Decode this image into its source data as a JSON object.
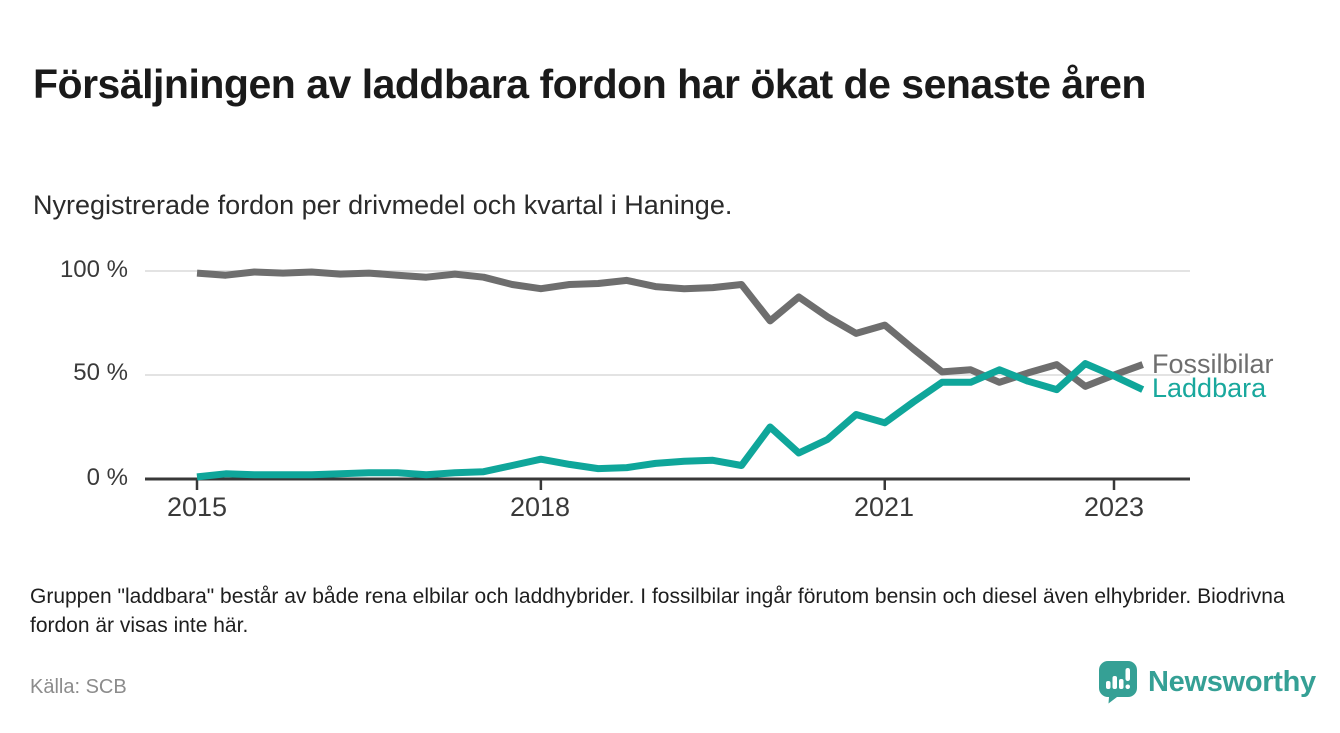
{
  "header": {
    "title": "Försäljningen av laddbara fordon har ökat de senaste åren",
    "subtitle": "Nyregistrerade fordon per drivmedel och kvartal i Haninge."
  },
  "chart_data": {
    "type": "line",
    "title": "Försäljningen av laddbara fordon har ökat de senaste åren",
    "subtitle": "Nyregistrerade fordon per drivmedel och kvartal i Haninge.",
    "unit": "%",
    "x": [
      "2015 Q1",
      "2015 Q2",
      "2015 Q3",
      "2015 Q4",
      "2016 Q1",
      "2016 Q2",
      "2016 Q3",
      "2016 Q4",
      "2017 Q1",
      "2017 Q2",
      "2017 Q3",
      "2017 Q4",
      "2018 Q1",
      "2018 Q2",
      "2018 Q3",
      "2018 Q4",
      "2019 Q1",
      "2019 Q2",
      "2019 Q3",
      "2019 Q4",
      "2020 Q1",
      "2020 Q2",
      "2020 Q3",
      "2020 Q4",
      "2021 Q1",
      "2021 Q2",
      "2021 Q3",
      "2021 Q4",
      "2022 Q1",
      "2022 Q2",
      "2022 Q3",
      "2022 Q4",
      "2023 Q1",
      "2023 Q2"
    ],
    "series": [
      {
        "name": "Fossilbilar",
        "color": "#6e6e6e",
        "values": [
          99,
          98,
          99.5,
          99,
          99.5,
          98.5,
          99,
          98,
          97,
          98.5,
          97,
          93.5,
          91.5,
          93.5,
          94,
          95.5,
          92.5,
          91.5,
          92,
          93.5,
          76,
          87.5,
          78,
          70,
          74,
          62.5,
          51.5,
          52.5,
          46.5,
          51,
          55,
          44.5,
          50,
          55
        ]
      },
      {
        "name": "Laddbara",
        "color": "#0fa69a",
        "values": [
          1,
          2.5,
          2,
          2,
          2,
          2.5,
          3,
          3,
          2,
          3,
          3.5,
          6.5,
          9.5,
          7,
          5,
          5.5,
          7.5,
          8.5,
          9,
          6.5,
          25,
          12.5,
          19,
          31,
          27,
          37,
          46.5,
          46.5,
          52.5,
          47,
          43,
          55.5,
          49.5,
          43
        ]
      }
    ],
    "ylim": [
      0,
      100
    ],
    "y_ticks": [
      {
        "value": 0,
        "label": "0 %"
      },
      {
        "value": 50,
        "label": "50 %"
      },
      {
        "value": 100,
        "label": "100 %"
      }
    ],
    "x_ticks": [
      {
        "index": 0,
        "label": "2015"
      },
      {
        "index": 12,
        "label": "2018"
      },
      {
        "index": 24,
        "label": "2021"
      },
      {
        "index": 32,
        "label": "2023"
      }
    ],
    "grid": "horizontal",
    "legend_position": "right-end-of-lines"
  },
  "footer": {
    "note": "Gruppen \"laddbara\" består av både rena elbilar och laddhybrider. I fossilbilar ingår förutom bensin och diesel även elhybrider. Biodrivna fordon är visas inte här.",
    "source": "Källa: SCB",
    "brand": "Newsworthy"
  },
  "colors": {
    "fossil_line": "#6e6e6e",
    "laddbara_line": "#0fa69a",
    "grid_line": "#e3e3e3",
    "axis_line": "#383838",
    "brand_teal": "#35a095"
  }
}
